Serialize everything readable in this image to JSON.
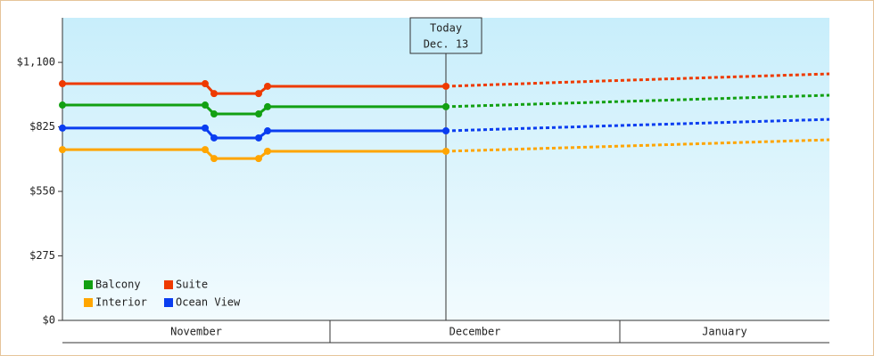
{
  "chart_data": {
    "type": "line",
    "x": [
      0,
      16,
      17,
      22,
      23,
      43,
      60,
      86
    ],
    "xlim": [
      0,
      86
    ],
    "xticks": [
      30,
      62.5
    ],
    "x_bands": [
      "November",
      "December",
      "January"
    ],
    "ylim": [
      0,
      1290
    ],
    "yticks": [
      {
        "value": 0,
        "label": "$0"
      },
      {
        "value": 275,
        "label": "$275"
      },
      {
        "value": 550,
        "label": "$550"
      },
      {
        "value": 825,
        "label": "$825"
      },
      {
        "value": 1100,
        "label": "$1,100"
      }
    ],
    "annotation": {
      "lines": [
        "Today",
        "Dec. 13"
      ],
      "x": 43
    },
    "series": [
      {
        "name": "Balcony",
        "color": "#12a012",
        "values": [
          918,
          918,
          880,
          880,
          911,
          911,
          930,
          960
        ]
      },
      {
        "name": "Suite",
        "color": "#ee3a00",
        "values": [
          1009,
          1009,
          967,
          967,
          998,
          998,
          1020,
          1051
        ]
      },
      {
        "name": "Interior",
        "color": "#ffa500",
        "values": [
          728,
          728,
          690,
          690,
          721,
          721,
          740,
          770
        ]
      },
      {
        "name": "Ocean View",
        "color": "#0a3df0",
        "values": [
          820,
          820,
          778,
          778,
          808,
          808,
          828,
          857
        ]
      }
    ],
    "legend": "lower left"
  }
}
